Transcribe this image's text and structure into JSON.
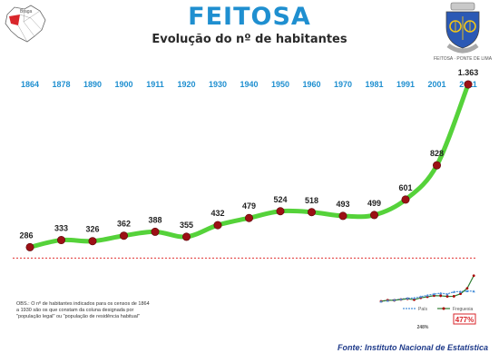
{
  "header": {
    "title": "FEITOSA",
    "subtitle": "Evolução do nº de habitantes",
    "map_label": "Braga",
    "crest_text": "FEITOSA · PONTE DE LIMA"
  },
  "footer": {
    "source": "Fonte: Instituto Nacional de Estatística",
    "note": "OBS.: O nº de habitantes indicados para os censos de 1864 a 1930 são os que constam da coluna designada por \"população legal\" ou \"população de residência habitual\""
  },
  "chart_data": {
    "type": "line",
    "categories": [
      "1864",
      "1878",
      "1890",
      "1900",
      "1911",
      "1920",
      "1930",
      "1940",
      "1950",
      "1960",
      "1970",
      "1981",
      "1991",
      "2001",
      "2011"
    ],
    "value_labels": [
      "286",
      "333",
      "326",
      "362",
      "388",
      "355",
      "432",
      "479",
      "524",
      "518",
      "493",
      "499",
      "601",
      "828",
      "1.363"
    ],
    "series": [
      {
        "values": [
          286,
          333,
          326,
          362,
          388,
          355,
          432,
          479,
          524,
          518,
          493,
          499,
          601,
          828,
          1363
        ],
        "color": "#55d23a"
      }
    ],
    "reference_line": {
      "value": 286,
      "color": "#e03030",
      "style": "dotted"
    },
    "ylim": [
      0,
      1500
    ],
    "legend": {
      "position": "bottom-right",
      "entries": [
        {
          "name": "País",
          "color": "#4a90d9"
        },
        {
          "name": "Freguesia",
          "color": "#2e7d32"
        }
      ]
    },
    "inset": {
      "growth_label": "477%",
      "secondary_label": "248%",
      "pais_values": [
        100,
        112,
        121,
        132,
        146,
        148,
        168,
        189,
        208,
        219,
        207,
        240,
        242,
        252,
        248
      ],
      "freguesia_values": [
        100,
        116,
        114,
        127,
        136,
        124,
        151,
        167,
        183,
        181,
        172,
        174,
        210,
        290,
        477
      ]
    }
  }
}
